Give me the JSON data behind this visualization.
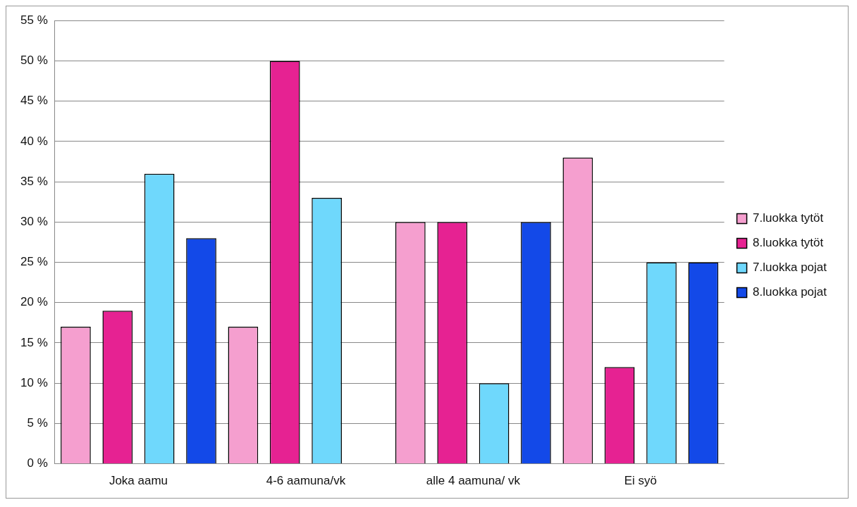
{
  "chart_data": {
    "type": "bar",
    "categories": [
      "Joka aamu",
      "4-6 aamuna/vk",
      "alle 4 aamuna/ vk",
      "Ei syö"
    ],
    "series": [
      {
        "name": "7.luokka tytöt",
        "color": "#f59fcf",
        "values": [
          17,
          17,
          30,
          38
        ]
      },
      {
        "name": "8.luokka tytöt",
        "color": "#e62292",
        "values": [
          19,
          50,
          30,
          12
        ]
      },
      {
        "name": "7.luokka pojat",
        "color": "#6fd8fc",
        "values": [
          36,
          33,
          10,
          25
        ]
      },
      {
        "name": "8.luokka pojat",
        "color": "#1349e8",
        "values": [
          28,
          null,
          30,
          25
        ]
      }
    ],
    "ylim": [
      0,
      55
    ],
    "yticks": [
      {
        "value": 0,
        "label": "0 %"
      },
      {
        "value": 5,
        "label": "5 %"
      },
      {
        "value": 10,
        "label": "10 %"
      },
      {
        "value": 15,
        "label": "15 %"
      },
      {
        "value": 20,
        "label": "20 %"
      },
      {
        "value": 25,
        "label": "25 %"
      },
      {
        "value": 30,
        "label": "30 %"
      },
      {
        "value": 35,
        "label": "35 %"
      },
      {
        "value": 40,
        "label": "40 %"
      },
      {
        "value": 45,
        "label": "45 %"
      },
      {
        "value": 50,
        "label": "50 %"
      },
      {
        "value": 55,
        "label": "55 %"
      }
    ],
    "grid": "y",
    "legend": "right"
  }
}
